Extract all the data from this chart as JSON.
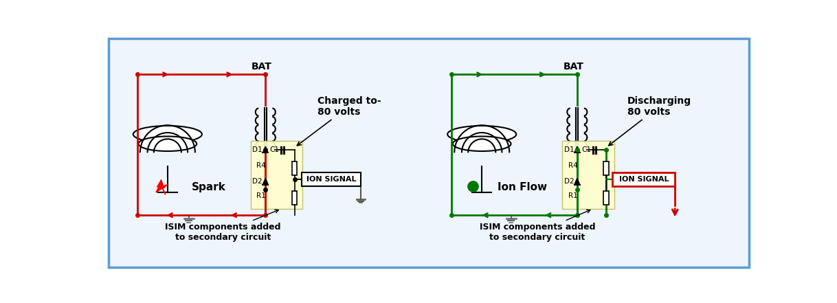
{
  "bg_color": "#eef5fc",
  "border_color": "#5b9bd5",
  "fig_bg": "#ffffff",
  "left_circuit_color": "#cc0000",
  "right_circuit_color": "#007700",
  "component_bg": "#ffffcc",
  "left_label": "Spark",
  "right_label": "Ion Flow",
  "bat_label": "BAT",
  "charged_label": "Charged to-\n80 volts",
  "discharging_label": "Discharging\n80 volts",
  "ion_signal_label": "ION SIGNAL",
  "isim_label": "ISIM components added\nto secondary circuit",
  "d1_label": "D1",
  "c1_label": "C1",
  "r4_label": "R4",
  "d2_label": "D2",
  "r1_label": "R1"
}
